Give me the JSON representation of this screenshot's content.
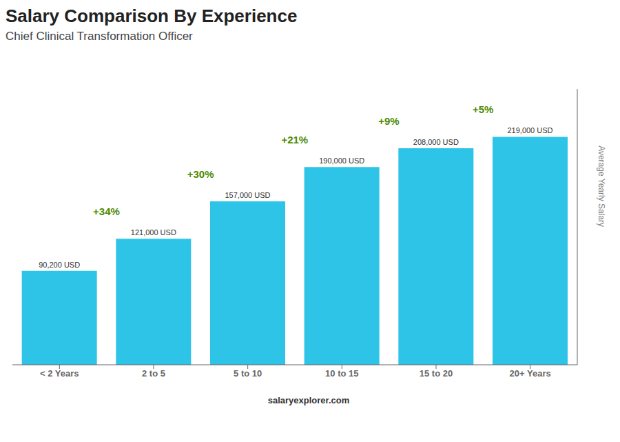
{
  "chart_data": {
    "type": "bar",
    "title": "Salary Comparison By Experience",
    "subtitle": "Chief Clinical Transformation Officer",
    "categories": [
      "< 2 Years",
      "2 to 5",
      "5 to 10",
      "10 to 15",
      "15 to 20",
      "20+ Years"
    ],
    "values": [
      90200,
      121000,
      157000,
      190000,
      208000,
      219000
    ],
    "value_labels": [
      "90,200 USD",
      "121,000 USD",
      "157,000 USD",
      "190,000 USD",
      "208,000 USD",
      "219,000 USD"
    ],
    "data_labels": true,
    "color": "#2EC4E8",
    "ylabel": "Average Yearly Salary",
    "ylim": [
      0,
      265000
    ],
    "tick_labels": "x",
    "grid": false,
    "annotations": [
      {
        "text": "+34%",
        "from": "< 2 Years",
        "to": "2 to 5"
      },
      {
        "text": "+30%",
        "from": "2 to 5",
        "to": "5 to 10"
      },
      {
        "text": "+21%",
        "from": "5 to 10",
        "to": "10 to 15"
      },
      {
        "text": "+9%",
        "from": "10 to 15",
        "to": "15 to 20"
      },
      {
        "text": "+5%",
        "from": "15 to 20",
        "to": "20+ Years"
      }
    ],
    "source": "salaryexplorer.com"
  }
}
